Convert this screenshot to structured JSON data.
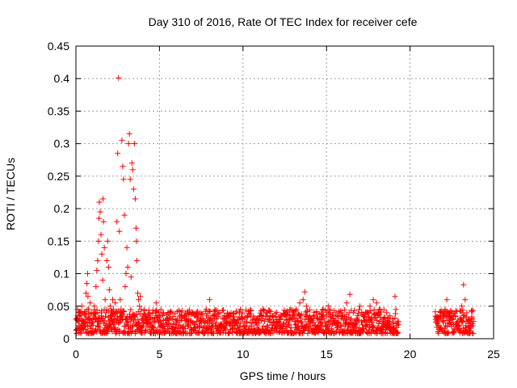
{
  "chart_data": {
    "type": "scatter",
    "title": "Day 310 of 2016, Rate Of TEC Index for receiver cefe",
    "xlabel": "GPS time / hours",
    "ylabel": "ROTI / TECUs",
    "xlim": [
      0,
      25
    ],
    "ylim": [
      0,
      0.45
    ],
    "x_ticks": [
      "0",
      "5",
      "10",
      "15",
      "20",
      "25"
    ],
    "y_ticks": [
      "0",
      "0.05",
      "0.1",
      "0.15",
      "0.2",
      "0.25",
      "0.3",
      "0.35",
      "0.4",
      "0.45"
    ],
    "grid": true,
    "marker": "plus",
    "color": "#ff0000",
    "series": [
      {
        "points": [
          [
            0.0,
            0.03
          ],
          [
            0.1,
            0.045
          ],
          [
            0.15,
            0.02
          ],
          [
            0.2,
            0.035
          ],
          [
            0.3,
            0.015
          ],
          [
            0.35,
            0.05
          ],
          [
            0.4,
            0.028
          ],
          [
            0.5,
            0.02
          ],
          [
            0.55,
            0.038
          ],
          [
            0.6,
            0.07
          ],
          [
            0.65,
            0.085
          ],
          [
            0.7,
            0.1
          ],
          [
            0.72,
            0.065
          ],
          [
            0.75,
            0.045
          ],
          [
            0.8,
            0.03
          ],
          [
            0.85,
            0.055
          ],
          [
            0.9,
            0.02
          ],
          [
            0.95,
            0.04
          ],
          [
            1.0,
            0.025
          ],
          [
            1.05,
            0.035
          ],
          [
            1.1,
            0.05
          ],
          [
            1.15,
            0.03
          ],
          [
            1.2,
            0.08
          ],
          [
            1.25,
            0.105
          ],
          [
            1.3,
            0.12
          ],
          [
            1.35,
            0.15
          ],
          [
            1.38,
            0.185
          ],
          [
            1.4,
            0.21
          ],
          [
            1.45,
            0.195
          ],
          [
            1.5,
            0.16
          ],
          [
            1.55,
            0.13
          ],
          [
            1.6,
            0.09
          ],
          [
            1.62,
            0.215
          ],
          [
            1.65,
            0.18
          ],
          [
            1.7,
            0.14
          ],
          [
            1.75,
            0.06
          ],
          [
            1.8,
            0.04
          ],
          [
            1.85,
            0.12
          ],
          [
            1.9,
            0.15
          ],
          [
            1.95,
            0.11
          ],
          [
            2.0,
            0.075
          ],
          [
            2.05,
            0.05
          ],
          [
            2.1,
            0.035
          ],
          [
            2.15,
            0.025
          ],
          [
            2.2,
            0.06
          ],
          [
            2.25,
            0.045
          ],
          [
            2.3,
            0.03
          ],
          [
            2.35,
            0.055
          ],
          [
            2.4,
            0.04
          ],
          [
            2.45,
            0.18
          ],
          [
            2.5,
            0.285
          ],
          [
            2.55,
            0.401
          ],
          [
            2.6,
            0.165
          ],
          [
            2.65,
            0.06
          ],
          [
            2.7,
            0.045
          ],
          [
            2.75,
            0.305
          ],
          [
            2.8,
            0.265
          ],
          [
            2.85,
            0.245
          ],
          [
            2.9,
            0.19
          ],
          [
            2.95,
            0.08
          ],
          [
            3.0,
            0.1
          ],
          [
            3.05,
            0.14
          ],
          [
            3.1,
            0.11
          ],
          [
            3.15,
            0.3
          ],
          [
            3.2,
            0.315
          ],
          [
            3.25,
            0.245
          ],
          [
            3.3,
            0.095
          ],
          [
            3.35,
            0.27
          ],
          [
            3.4,
            0.26
          ],
          [
            3.45,
            0.23
          ],
          [
            3.5,
            0.3
          ],
          [
            3.55,
            0.215
          ],
          [
            3.6,
            0.17
          ],
          [
            3.62,
            0.15
          ],
          [
            3.65,
            0.12
          ],
          [
            3.7,
            0.07
          ],
          [
            3.75,
            0.06
          ],
          [
            3.8,
            0.05
          ],
          [
            3.85,
            0.065
          ],
          [
            3.9,
            0.045
          ],
          [
            3.95,
            0.03
          ],
          [
            4.0,
            0.035
          ],
          [
            4.2,
            0.025
          ],
          [
            4.4,
            0.04
          ],
          [
            4.6,
            0.03
          ],
          [
            4.8,
            0.055
          ],
          [
            5.0,
            0.035
          ],
          [
            5.2,
            0.02
          ],
          [
            5.4,
            0.028
          ],
          [
            5.6,
            0.015
          ],
          [
            5.8,
            0.03
          ],
          [
            6.0,
            0.022
          ],
          [
            6.2,
            0.035
          ],
          [
            6.4,
            0.018
          ],
          [
            6.6,
            0.03
          ],
          [
            6.8,
            0.04
          ],
          [
            7.0,
            0.025
          ],
          [
            7.2,
            0.035
          ],
          [
            7.4,
            0.02
          ],
          [
            7.6,
            0.03
          ],
          [
            7.8,
            0.045
          ],
          [
            8.0,
            0.06
          ],
          [
            8.2,
            0.035
          ],
          [
            8.4,
            0.025
          ],
          [
            8.6,
            0.04
          ],
          [
            8.8,
            0.03
          ],
          [
            9.0,
            0.02
          ],
          [
            9.2,
            0.035
          ],
          [
            9.4,
            0.015
          ],
          [
            9.6,
            0.025
          ],
          [
            9.8,
            0.018
          ],
          [
            10.0,
            0.012
          ],
          [
            10.2,
            0.02
          ],
          [
            10.4,
            0.015
          ],
          [
            10.6,
            0.025
          ],
          [
            10.8,
            0.03
          ],
          [
            11.0,
            0.035
          ],
          [
            11.2,
            0.045
          ],
          [
            11.4,
            0.04
          ],
          [
            11.6,
            0.03
          ],
          [
            11.8,
            0.025
          ],
          [
            12.0,
            0.02
          ],
          [
            12.2,
            0.03
          ],
          [
            12.4,
            0.022
          ],
          [
            12.6,
            0.035
          ],
          [
            12.8,
            0.03
          ],
          [
            13.0,
            0.04
          ],
          [
            13.2,
            0.045
          ],
          [
            13.4,
            0.055
          ],
          [
            13.6,
            0.06
          ],
          [
            13.7,
            0.072
          ],
          [
            13.8,
            0.05
          ],
          [
            14.0,
            0.035
          ],
          [
            14.2,
            0.025
          ],
          [
            14.4,
            0.04
          ],
          [
            14.6,
            0.03
          ],
          [
            14.8,
            0.045
          ],
          [
            15.0,
            0.035
          ],
          [
            15.1,
            0.05
          ],
          [
            15.2,
            0.045
          ],
          [
            15.4,
            0.03
          ],
          [
            15.6,
            0.025
          ],
          [
            15.8,
            0.04
          ],
          [
            16.0,
            0.03
          ],
          [
            16.2,
            0.055
          ],
          [
            16.4,
            0.068
          ],
          [
            16.6,
            0.04
          ],
          [
            16.8,
            0.03
          ],
          [
            17.0,
            0.05
          ],
          [
            17.2,
            0.035
          ],
          [
            17.4,
            0.04
          ],
          [
            17.6,
            0.05
          ],
          [
            17.8,
            0.06
          ],
          [
            18.0,
            0.055
          ],
          [
            18.2,
            0.045
          ],
          [
            18.4,
            0.03
          ],
          [
            18.6,
            0.04
          ],
          [
            18.8,
            0.035
          ],
          [
            19.0,
            0.025
          ],
          [
            19.1,
            0.065
          ],
          [
            19.2,
            0.02
          ],
          [
            21.6,
            0.03
          ],
          [
            21.7,
            0.02
          ],
          [
            21.8,
            0.035
          ],
          [
            22.0,
            0.025
          ],
          [
            22.1,
            0.045
          ],
          [
            22.2,
            0.06
          ],
          [
            22.3,
            0.04
          ],
          [
            22.4,
            0.03
          ],
          [
            22.6,
            0.035
          ],
          [
            22.8,
            0.025
          ],
          [
            23.0,
            0.03
          ],
          [
            23.1,
            0.05
          ],
          [
            23.2,
            0.083
          ],
          [
            23.3,
            0.06
          ],
          [
            23.4,
            0.04
          ],
          [
            23.5,
            0.03
          ],
          [
            23.6,
            0.02
          ],
          [
            23.7,
            0.03
          ]
        ],
        "baseline_segments": [
          [
            0.0,
            19.3
          ],
          [
            21.5,
            23.8
          ]
        ],
        "baseline_range": [
          0.008,
          0.045
        ]
      }
    ]
  }
}
